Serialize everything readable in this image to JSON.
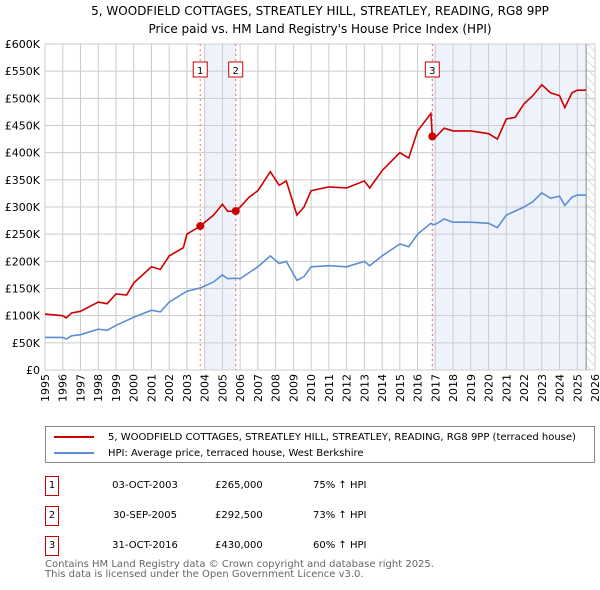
{
  "title": "5, WOODFIELD COTTAGES, STREATLEY HILL, STREATLEY, READING, RG8 9PP",
  "subtitle": "Price paid vs. HM Land Registry's House Price Index (HPI)",
  "colors": {
    "property": "#cc0000",
    "hpi": "#5b8fd4",
    "shade": "#eef3fb",
    "grid": "#cccccc",
    "marker_line": "#ff6666"
  },
  "chart_data": {
    "type": "line",
    "xlim": [
      1995,
      2026
    ],
    "ylim": [
      0,
      600000
    ],
    "x_ticks": [
      "1995",
      "1996",
      "1997",
      "1998",
      "1999",
      "2000",
      "2001",
      "2002",
      "2003",
      "2004",
      "2005",
      "2006",
      "2007",
      "2008",
      "2009",
      "2010",
      "2011",
      "2012",
      "2013",
      "2014",
      "2015",
      "2016",
      "2017",
      "2018",
      "2019",
      "2020",
      "2021",
      "2022",
      "2023",
      "2024",
      "2025",
      "2026"
    ],
    "y_ticks": [
      {
        "v": 0,
        "label": "£0"
      },
      {
        "v": 50000,
        "label": "£50K"
      },
      {
        "v": 100000,
        "label": "£100K"
      },
      {
        "v": 150000,
        "label": "£150K"
      },
      {
        "v": 200000,
        "label": "£200K"
      },
      {
        "v": 250000,
        "label": "£250K"
      },
      {
        "v": 300000,
        "label": "£300K"
      },
      {
        "v": 350000,
        "label": "£350K"
      },
      {
        "v": 400000,
        "label": "£400K"
      },
      {
        "v": 450000,
        "label": "£450K"
      },
      {
        "v": 500000,
        "label": "£500K"
      },
      {
        "v": 550000,
        "label": "£550K"
      },
      {
        "v": 600000,
        "label": "£600K"
      }
    ],
    "series": [
      {
        "name": "5, WOODFIELD COTTAGES, STREATLEY HILL, STREATLEY, READING, RG8 9PP (terraced house)",
        "x": [
          1995,
          1996,
          1996.2,
          1996.5,
          1997,
          1998,
          1998.5,
          1999,
          1999.6,
          2000,
          2001,
          2001.5,
          2002,
          2002.8,
          2003,
          2003.75,
          2004.5,
          2005,
          2005.3,
          2005.75,
          2006,
          2006.5,
          2007,
          2007.7,
          2008.2,
          2008.6,
          2009.2,
          2009.6,
          2010,
          2011,
          2012,
          2013,
          2013.3,
          2014,
          2015,
          2015.5,
          2016,
          2016.75,
          2016.83,
          2017,
          2017.5,
          2018,
          2019,
          2020,
          2020.5,
          2021,
          2021.5,
          2022,
          2022.5,
          2023,
          2023.5,
          2024,
          2024.3,
          2024.7,
          2025,
          2025.5
        ],
        "values": [
          103000,
          100000,
          96000,
          105000,
          108000,
          125000,
          122000,
          140000,
          138000,
          160000,
          190000,
          185000,
          210000,
          225000,
          250000,
          265000,
          285000,
          305000,
          292000,
          292500,
          300000,
          318000,
          330000,
          365000,
          340000,
          348000,
          285000,
          300000,
          330000,
          337000,
          335000,
          348000,
          335000,
          367000,
          400000,
          390000,
          440000,
          472000,
          430000,
          428000,
          445000,
          440000,
          440000,
          435000,
          425000,
          462000,
          465000,
          490000,
          505000,
          525000,
          510000,
          505000,
          483000,
          510000,
          515000,
          515000
        ]
      },
      {
        "name": "HPI: Average price, terraced house, West Berkshire",
        "x": [
          1995,
          1996,
          1996.2,
          1996.5,
          1997,
          1998,
          1998.5,
          1999,
          2000,
          2001,
          2001.5,
          2002,
          2003,
          2003.75,
          2004.5,
          2005,
          2005.3,
          2005.75,
          2006,
          2007,
          2007.7,
          2008.2,
          2008.6,
          2009.2,
          2009.6,
          2010,
          2011,
          2012,
          2013,
          2013.3,
          2014,
          2015,
          2015.5,
          2016,
          2016.75,
          2016.83,
          2017,
          2017.5,
          2018,
          2019,
          2020,
          2020.5,
          2021,
          2022,
          2022.5,
          2023,
          2023.5,
          2024,
          2024.3,
          2024.7,
          2025,
          2025.5
        ],
        "values": [
          60000,
          60000,
          57000,
          63000,
          65000,
          75000,
          73000,
          82000,
          97000,
          110000,
          107000,
          125000,
          145000,
          151000,
          162000,
          175000,
          168000,
          169000,
          168000,
          190000,
          210000,
          196000,
          200000,
          165000,
          172000,
          190000,
          192000,
          190000,
          200000,
          192000,
          210000,
          232000,
          227000,
          250000,
          270000,
          268000,
          268000,
          278000,
          272000,
          272000,
          270000,
          262000,
          285000,
          300000,
          310000,
          326000,
          316000,
          320000,
          303000,
          318000,
          322000,
          322000
        ]
      }
    ],
    "sales": [
      {
        "label": "1",
        "x": 2003.75,
        "value": 265000,
        "date": "03-OCT-2003",
        "price": "£265,000",
        "hpi": "75% ↑ HPI"
      },
      {
        "label": "2",
        "x": 2005.75,
        "value": 292500,
        "date": "30-SEP-2005",
        "price": "£292,500",
        "hpi": "73% ↑ HPI"
      },
      {
        "label": "3",
        "x": 2016.83,
        "value": 430000,
        "date": "31-OCT-2016",
        "price": "£430,000",
        "hpi": "60% ↑ HPI"
      }
    ],
    "shaded_ranges": [
      [
        2003.95,
        2005.75
      ],
      [
        2016.83,
        2025.5
      ]
    ],
    "hatched_from": 2025.5
  },
  "footer": [
    "Contains HM Land Registry data © Crown copyright and database right 2025.",
    "This data is licensed under the Open Government Licence v3.0."
  ]
}
